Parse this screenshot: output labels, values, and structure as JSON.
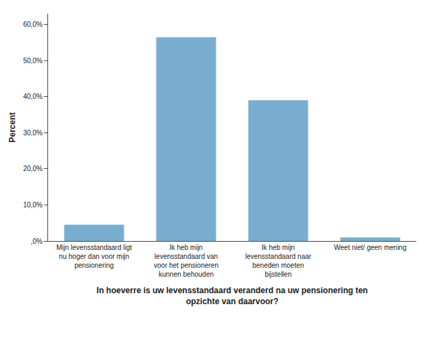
{
  "chart_data": {
    "type": "bar",
    "categories": [
      "Mijn levensstandaard ligt\nnu hoger dan voor mijn\npensionering",
      "Ik heb mijn\nlevensstandaard van\nvoor het pensioneren\nkunnen behouden",
      "Ik heb mijn\nlevensstandaard naar\nbeneden moeten\nbijstellen",
      "Weet niet/ geen mening"
    ],
    "values": [
      4.5,
      56.5,
      39.0,
      1.0
    ],
    "color": "#7AAED1",
    "xlabel": "In hoeverre is uw levensstandaard veranderd na uw pensionering ten\nopzichte van daarvoor?",
    "ylabel": "Percent",
    "ylim": [
      0,
      63
    ],
    "yticks": [
      {
        "value": 0,
        "label": ",0%"
      },
      {
        "value": 10,
        "label": "10,0%"
      },
      {
        "value": 20,
        "label": "20,0%"
      },
      {
        "value": 30,
        "label": "30,0%"
      },
      {
        "value": 40,
        "label": "40,0%"
      },
      {
        "value": 50,
        "label": "50,0%"
      },
      {
        "value": 60,
        "label": "60,0%"
      }
    ],
    "grid": false
  }
}
